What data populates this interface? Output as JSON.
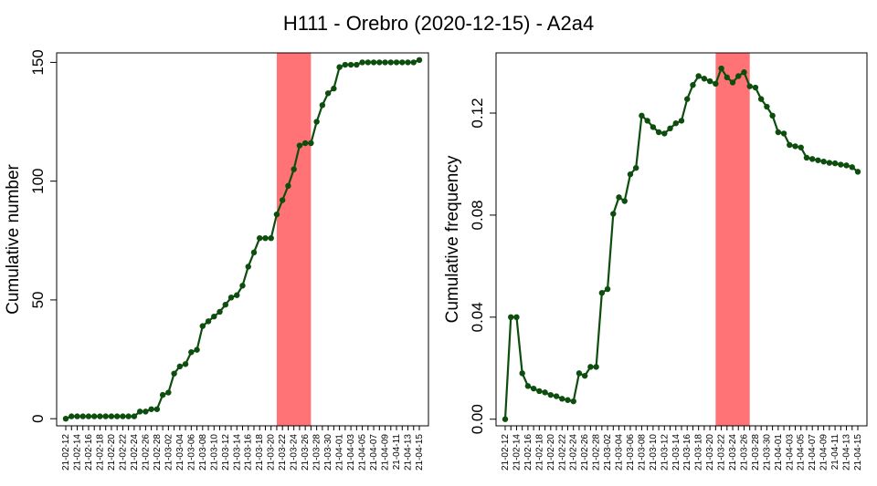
{
  "title": "H111 - Orebro (2020-12-15) - A2a4",
  "colors": {
    "line": "#0d4d0d",
    "highlight": "#ff7377",
    "axis": "#000000"
  },
  "chart_data": [
    {
      "type": "line",
      "ylabel": "Cumulative number",
      "xlabel": "",
      "ylim": [
        -3.0,
        154.0
      ],
      "yticks": [
        0,
        50,
        100,
        150
      ],
      "ytick_labels": [
        "0",
        "50",
        "100",
        "150"
      ],
      "highlight": {
        "from": "21-03-21",
        "to": "21-03-27"
      },
      "x": [
        "21-02-12",
        "21-02-13",
        "21-02-14",
        "21-02-15",
        "21-02-16",
        "21-02-17",
        "21-02-18",
        "21-02-19",
        "21-02-20",
        "21-02-21",
        "21-02-22",
        "21-02-23",
        "21-02-24",
        "21-02-25",
        "21-02-26",
        "21-02-27",
        "21-02-28",
        "21-03-01",
        "21-03-02",
        "21-03-03",
        "21-03-04",
        "21-03-05",
        "21-03-06",
        "21-03-07",
        "21-03-08",
        "21-03-09",
        "21-03-10",
        "21-03-11",
        "21-03-12",
        "21-03-13",
        "21-03-14",
        "21-03-15",
        "21-03-16",
        "21-03-17",
        "21-03-18",
        "21-03-19",
        "21-03-20",
        "21-03-21",
        "21-03-22",
        "21-03-23",
        "21-03-24",
        "21-03-25",
        "21-03-26",
        "21-03-27",
        "21-03-28",
        "21-03-29",
        "21-03-30",
        "21-03-31",
        "21-04-01",
        "21-04-02",
        "21-04-03",
        "21-04-04",
        "21-04-05",
        "21-04-06",
        "21-04-07",
        "21-04-08",
        "21-04-09",
        "21-04-10",
        "21-04-11",
        "21-04-12",
        "21-04-13",
        "21-04-14",
        "21-04-15"
      ],
      "xtick_labels": [
        "21-02-12",
        "21-02-14",
        "21-02-16",
        "21-02-18",
        "21-02-20",
        "21-02-22",
        "21-02-24",
        "21-02-26",
        "21-02-28",
        "21-03-02",
        "21-03-04",
        "21-03-06",
        "21-03-08",
        "21-03-10",
        "21-03-12",
        "21-03-14",
        "21-03-16",
        "21-03-18",
        "21-03-20",
        "21-03-22",
        "21-03-24",
        "21-03-26",
        "21-03-28",
        "21-03-30",
        "21-04-01",
        "21-04-03",
        "21-04-05",
        "21-04-07",
        "21-04-09",
        "21-04-11",
        "21-04-13",
        "21-04-15"
      ],
      "values": [
        0,
        1,
        1,
        1,
        1,
        1,
        1,
        1,
        1,
        1,
        1,
        1,
        1,
        3,
        3,
        4,
        4,
        10,
        11,
        19,
        22,
        23,
        28,
        29,
        39,
        41,
        43,
        45,
        48,
        51,
        52,
        56,
        64,
        70,
        76,
        76,
        76,
        86,
        92,
        98,
        105,
        115,
        116,
        116,
        125,
        132,
        137,
        139,
        148,
        149,
        149,
        149,
        150,
        150,
        150,
        150,
        150,
        150,
        150,
        150,
        150,
        150,
        151
      ]
    },
    {
      "type": "line",
      "ylabel": "Cumulative frequency",
      "xlabel": "",
      "ylim": [
        -0.0026,
        0.1436
      ],
      "yticks": [
        0,
        0.04,
        0.08,
        0.12
      ],
      "ytick_labels": [
        "0.00",
        "0.04",
        "0.08",
        "0.12"
      ],
      "highlight": {
        "from": "21-03-21",
        "to": "21-03-27"
      },
      "x": [
        "21-02-12",
        "21-02-13",
        "21-02-14",
        "21-02-15",
        "21-02-16",
        "21-02-17",
        "21-02-18",
        "21-02-19",
        "21-02-20",
        "21-02-21",
        "21-02-22",
        "21-02-23",
        "21-02-24",
        "21-02-25",
        "21-02-26",
        "21-02-27",
        "21-02-28",
        "21-03-01",
        "21-03-02",
        "21-03-03",
        "21-03-04",
        "21-03-05",
        "21-03-06",
        "21-03-07",
        "21-03-08",
        "21-03-09",
        "21-03-10",
        "21-03-11",
        "21-03-12",
        "21-03-13",
        "21-03-14",
        "21-03-15",
        "21-03-16",
        "21-03-17",
        "21-03-18",
        "21-03-19",
        "21-03-20",
        "21-03-21",
        "21-03-22",
        "21-03-23",
        "21-03-24",
        "21-03-25",
        "21-03-26",
        "21-03-27",
        "21-03-28",
        "21-03-29",
        "21-03-30",
        "21-03-31",
        "21-04-01",
        "21-04-02",
        "21-04-03",
        "21-04-04",
        "21-04-05",
        "21-04-06",
        "21-04-07",
        "21-04-08",
        "21-04-09",
        "21-04-10",
        "21-04-11",
        "21-04-12",
        "21-04-13",
        "21-04-14",
        "21-04-15"
      ],
      "xtick_labels": [
        "21-02-12",
        "21-02-14",
        "21-02-16",
        "21-02-18",
        "21-02-20",
        "21-02-22",
        "21-02-24",
        "21-02-26",
        "21-02-28",
        "21-03-02",
        "21-03-04",
        "21-03-06",
        "21-03-08",
        "21-03-10",
        "21-03-12",
        "21-03-14",
        "21-03-16",
        "21-03-18",
        "21-03-20",
        "21-03-22",
        "21-03-24",
        "21-03-26",
        "21-03-28",
        "21-03-30",
        "21-04-01",
        "21-04-03",
        "21-04-05",
        "21-04-07",
        "21-04-09",
        "21-04-11",
        "21-04-13",
        "21-04-15"
      ],
      "values": [
        0.0,
        0.04,
        0.04,
        0.018,
        0.013,
        0.012,
        0.011,
        0.0105,
        0.0095,
        0.009,
        0.008,
        0.0075,
        0.007,
        0.018,
        0.017,
        0.0205,
        0.0205,
        0.0495,
        0.051,
        0.0805,
        0.087,
        0.0855,
        0.096,
        0.0985,
        0.119,
        0.117,
        0.1145,
        0.1125,
        0.112,
        0.114,
        0.116,
        0.117,
        0.1255,
        0.131,
        0.1345,
        0.1335,
        0.1325,
        0.1315,
        0.1375,
        0.134,
        0.132,
        0.1345,
        0.136,
        0.1305,
        0.13,
        0.1255,
        0.1225,
        0.119,
        0.1125,
        0.112,
        0.1075,
        0.107,
        0.1065,
        0.1025,
        0.102,
        0.1015,
        0.101,
        0.1005,
        0.1003,
        0.0998,
        0.0995,
        0.0988,
        0.097
      ]
    }
  ]
}
